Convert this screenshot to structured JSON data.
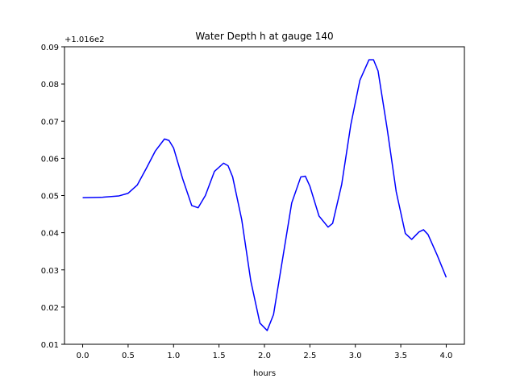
{
  "chart_data": {
    "type": "line",
    "title": "Water Depth h at gauge 140",
    "xlabel": "hours",
    "ylabel": "",
    "y_offset_label": "+1.016e2",
    "xlim": [
      -0.2,
      4.2
    ],
    "ylim": [
      0.01,
      0.09
    ],
    "xticks": [
      0.0,
      0.5,
      1.0,
      1.5,
      2.0,
      2.5,
      3.0,
      3.5,
      4.0
    ],
    "xtick_labels": [
      "0.0",
      "0.5",
      "1.0",
      "1.5",
      "2.0",
      "2.5",
      "3.0",
      "3.5",
      "4.0"
    ],
    "yticks": [
      0.01,
      0.02,
      0.03,
      0.04,
      0.05,
      0.06,
      0.07,
      0.08,
      0.09
    ],
    "ytick_labels": [
      "0.01",
      "0.02",
      "0.03",
      "0.04",
      "0.05",
      "0.06",
      "0.07",
      "0.08",
      "0.09"
    ],
    "grid": false,
    "series": [
      {
        "color": "#0000ff",
        "x": [
          0.0,
          0.2,
          0.4,
          0.5,
          0.6,
          0.7,
          0.8,
          0.9,
          0.95,
          1.0,
          1.1,
          1.2,
          1.27,
          1.35,
          1.45,
          1.55,
          1.6,
          1.65,
          1.75,
          1.85,
          1.95,
          2.03,
          2.1,
          2.2,
          2.3,
          2.4,
          2.45,
          2.5,
          2.6,
          2.7,
          2.75,
          2.85,
          2.95,
          3.05,
          3.15,
          3.2,
          3.25,
          3.35,
          3.45,
          3.55,
          3.62,
          3.7,
          3.75,
          3.8,
          3.9,
          4.0
        ],
        "y": [
          0.0494,
          0.0495,
          0.0499,
          0.0506,
          0.0528,
          0.0573,
          0.062,
          0.0652,
          0.0648,
          0.0628,
          0.0545,
          0.0473,
          0.0467,
          0.05,
          0.0565,
          0.0587,
          0.058,
          0.055,
          0.0435,
          0.027,
          0.0157,
          0.0137,
          0.018,
          0.033,
          0.048,
          0.055,
          0.0552,
          0.0525,
          0.0445,
          0.0415,
          0.0425,
          0.053,
          0.069,
          0.081,
          0.0865,
          0.0865,
          0.0835,
          0.068,
          0.051,
          0.0398,
          0.0382,
          0.0402,
          0.0408,
          0.0395,
          0.034,
          0.028
        ]
      }
    ]
  }
}
